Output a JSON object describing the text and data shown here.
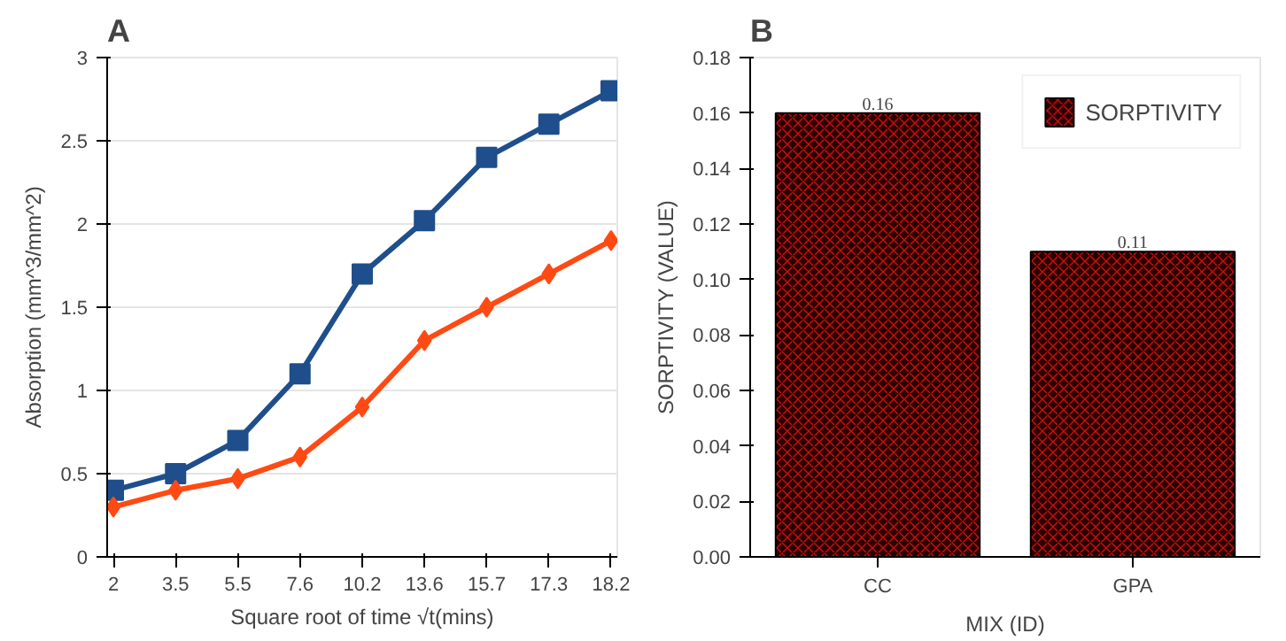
{
  "chart_data": [
    {
      "type": "line",
      "title": "A",
      "xlabel": "Square root of time √t(mins)",
      "ylabel": "Absorption (mm^3/mm^2)",
      "categories": [
        "2",
        "3.5",
        "5.5",
        "7.6",
        "10.2",
        "13.6",
        "15.7",
        "17.3",
        "18.2"
      ],
      "series": [
        {
          "color": "#1f4e8c",
          "marker": "square",
          "values": [
            0.4,
            0.5,
            0.7,
            1.1,
            1.7,
            2.02,
            2.4,
            2.6,
            2.8
          ]
        },
        {
          "color": "#ff4a14",
          "marker": "diamond",
          "values": [
            0.3,
            0.4,
            0.47,
            0.6,
            0.9,
            1.3,
            1.5,
            1.7,
            1.9
          ]
        }
      ],
      "ylim": [
        0,
        3
      ],
      "yticks": [
        0,
        0.5,
        1,
        1.5,
        2,
        2.5,
        3
      ],
      "grid": "y",
      "legend": false
    },
    {
      "type": "bar",
      "title": "B",
      "xlabel": "MIX (ID)",
      "ylabel": "SORPTIVITY (VALUE)",
      "categories": [
        "CC",
        "GPA"
      ],
      "series": [
        {
          "name": "SORPTIVITY",
          "color": "#2a0000",
          "values": [
            0.16,
            0.11
          ]
        }
      ],
      "ylim": [
        0,
        0.18
      ],
      "yticks": [
        {
          "value": 0,
          "label": "0.00"
        },
        {
          "value": 0.02,
          "label": "0.02"
        },
        {
          "value": 0.04,
          "label": "0.04"
        },
        {
          "value": 0.06,
          "label": "0.06"
        },
        {
          "value": 0.08,
          "label": "0.08"
        },
        {
          "value": 0.1,
          "label": "0.10"
        },
        {
          "value": 0.12,
          "label": "0.12"
        },
        {
          "value": 0.14,
          "label": "0.14"
        },
        {
          "value": 0.16,
          "label": "0.16"
        },
        {
          "value": 0.18,
          "label": "0.18"
        }
      ],
      "data_labels": true,
      "grid": false,
      "legend": "top right"
    }
  ]
}
